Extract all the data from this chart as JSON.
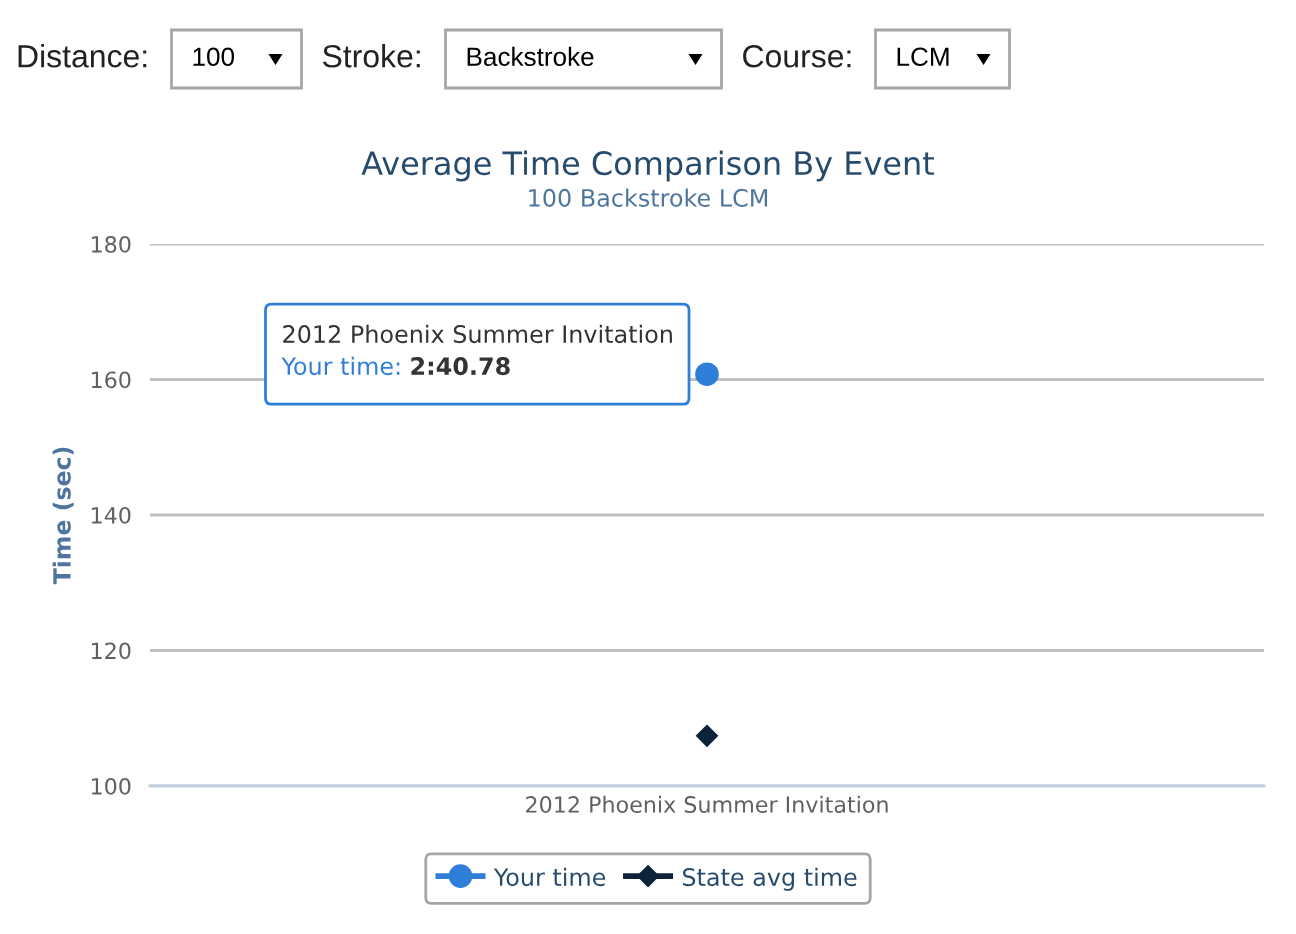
{
  "chart_data": {
    "type": "line",
    "title": "Average Time Comparison By Event",
    "subtitle": "100 Backstroke LCM",
    "ylabel": "Time (sec)",
    "categories": [
      "2012 Phoenix Summer Invitation"
    ],
    "series": [
      {
        "name": "Your time",
        "color": "#2f7ed8",
        "values": [
          160.78
        ],
        "marker": "circle"
      },
      {
        "name": "State avg time",
        "color": "#0d233a",
        "values": [
          107.4
        ],
        "marker": "diamond"
      }
    ],
    "line_style": "solid",
    "ylim": [
      100,
      180
    ],
    "yticks": [
      100,
      120,
      140,
      160,
      180
    ],
    "grid": "y",
    "legend": "bottom",
    "annotations": [
      "Distance:",
      "100",
      "Stroke:",
      "Backstroke",
      "Course:",
      "LCM",
      {
        "text": "2012 Phoenix Summer Invitation\nYour time: 2:40.78",
        "x": "2012 Phoenix Summer Invitation",
        "y": 160.78
      }
    ]
  }
}
